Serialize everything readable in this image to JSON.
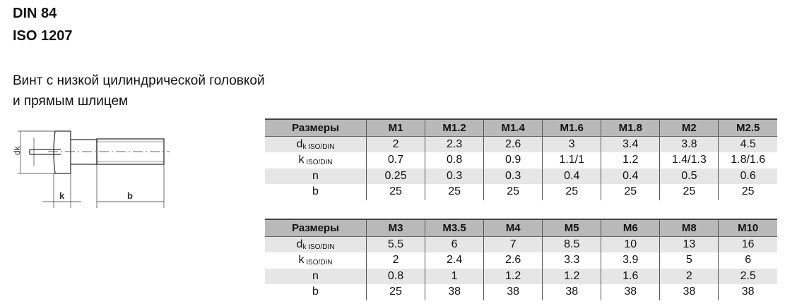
{
  "title1": "DIN 84",
  "title2": "ISO 1207",
  "desc1": "Винт с низкой цилиндрической головкой",
  "desc2": "и прямым шлицем",
  "drawing": {
    "label_dk": "dk",
    "label_k": "k",
    "label_b": "b"
  },
  "tables": [
    {
      "header": [
        "Размеры",
        "M1",
        "M1.2",
        "M1.4",
        "M1.6",
        "M1.8",
        "M2",
        "M2.5"
      ],
      "rows": [
        {
          "label": "d",
          "sub": "k ISO/DIN",
          "values": [
            "2",
            "2.3",
            "2.6",
            "3",
            "3.4",
            "3.8",
            "4.5"
          ]
        },
        {
          "label": "k",
          "sub": " ISO/DIN",
          "values": [
            "0.7",
            "0.8",
            "0.9",
            "1.1/1",
            "1.2",
            "1.4/1.3",
            "1.8/1.6"
          ]
        },
        {
          "label": "n",
          "sub": "",
          "values": [
            "0.25",
            "0.3",
            "0.3",
            "0.4",
            "0.4",
            "0.5",
            "0.6"
          ]
        },
        {
          "label": "b",
          "sub": "",
          "values": [
            "25",
            "25",
            "25",
            "25",
            "25",
            "25",
            "25"
          ]
        }
      ]
    },
    {
      "header": [
        "Размеры",
        "M3",
        "M3.5",
        "M4",
        "M5",
        "M6",
        "M8",
        "M10"
      ],
      "rows": [
        {
          "label": "d",
          "sub": "k ISO/DIN",
          "values": [
            "5.5",
            "6",
            "7",
            "8.5",
            "10",
            "13",
            "16"
          ]
        },
        {
          "label": "k",
          "sub": " ISO/DIN",
          "values": [
            "2",
            "2.4",
            "2.6",
            "3.3",
            "3.9",
            "5",
            "6"
          ]
        },
        {
          "label": "n",
          "sub": "",
          "values": [
            "0.8",
            "1",
            "1.2",
            "1.2",
            "1.6",
            "2",
            "2.5"
          ]
        },
        {
          "label": "b",
          "sub": "",
          "values": [
            "25",
            "38",
            "38",
            "38",
            "38",
            "38",
            "38"
          ]
        }
      ]
    }
  ]
}
